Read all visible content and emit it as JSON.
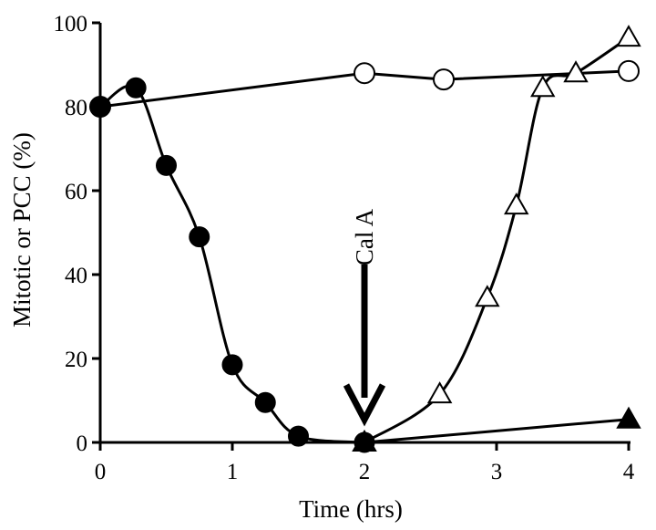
{
  "chart_data": {
    "type": "line",
    "title": "",
    "xlabel": "Time (hrs)",
    "ylabel": "Mitotic or PCC (%)",
    "xlim": [
      0,
      4
    ],
    "ylim": [
      0,
      100
    ],
    "xticks": [
      0,
      1,
      2,
      3,
      4
    ],
    "yticks": [
      0,
      20,
      40,
      60,
      80,
      100
    ],
    "grid": false,
    "legend": "none",
    "series": [
      {
        "marker": "open-circle",
        "x": [
          0,
          2,
          2.6,
          4
        ],
        "y": [
          80,
          88,
          86.5,
          88.5
        ]
      },
      {
        "marker": "filled-circle",
        "x": [
          0,
          0.27,
          0.5,
          0.75,
          1.0,
          1.25,
          1.5,
          2.0
        ],
        "y": [
          80,
          84.5,
          66,
          49,
          18.5,
          9.5,
          1.5,
          0
        ]
      },
      {
        "marker": "open-triangle",
        "x": [
          2.0,
          2.57,
          2.93,
          3.15,
          3.35,
          3.6,
          4.0
        ],
        "y": [
          0,
          11.5,
          34.5,
          56.5,
          84.5,
          88,
          96.5
        ]
      },
      {
        "marker": "filled-triangle",
        "x": [
          2.0,
          4.0
        ],
        "y": [
          0,
          5.5
        ]
      }
    ],
    "annotations": [
      {
        "text": "Cal A",
        "x": 2.0,
        "y": 25,
        "arrow": "down"
      }
    ]
  }
}
